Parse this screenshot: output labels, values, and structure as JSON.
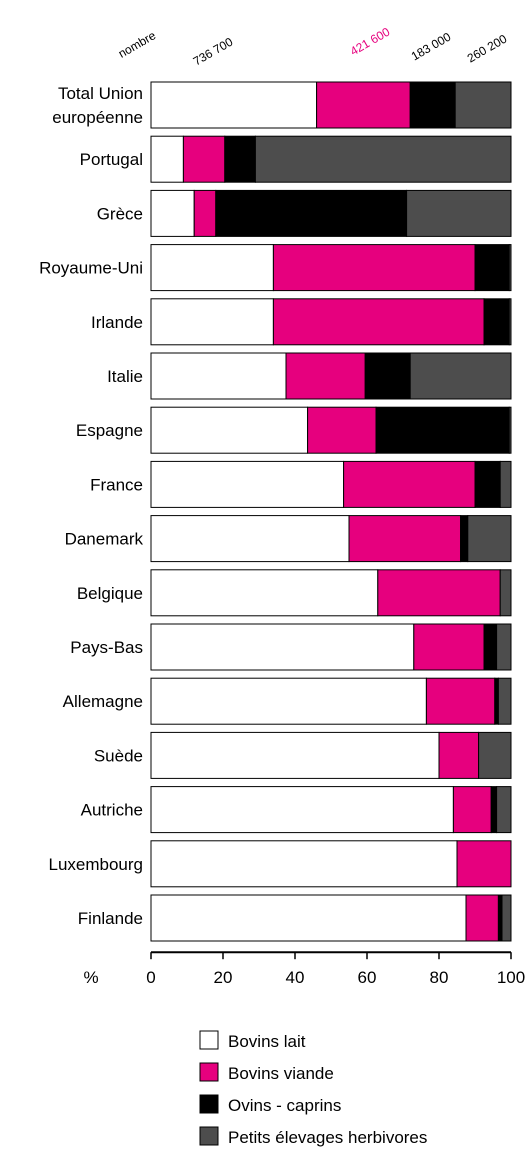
{
  "chart_data": {
    "type": "bar",
    "orientation": "horizontal",
    "stacked": true,
    "title": "",
    "xlabel": "%",
    "ylabel": "",
    "xlim": [
      0,
      100
    ],
    "x_ticks": [
      "0",
      "20",
      "40",
      "60",
      "80",
      "100"
    ],
    "header_labels": [
      {
        "text": "nombre",
        "color": "#000000"
      },
      {
        "text": "736 700",
        "color": "#000000"
      },
      {
        "text": "421 600",
        "color": "#e6007e"
      },
      {
        "text": "183 000",
        "color": "#000000"
      },
      {
        "text": "260 200",
        "color": "#000000"
      }
    ],
    "categories": [
      [
        "Total Union",
        "européenne"
      ],
      [
        "Portugal"
      ],
      [
        "Grèce"
      ],
      [
        "Royaume-Uni"
      ],
      [
        "Irlande"
      ],
      [
        "Italie"
      ],
      [
        "Espagne"
      ],
      [
        "France"
      ],
      [
        "Danemark"
      ],
      [
        "Belgique"
      ],
      [
        "Pays-Bas"
      ],
      [
        "Allemagne"
      ],
      [
        "Suède"
      ],
      [
        "Autriche"
      ],
      [
        "Luxembourg"
      ],
      [
        "Finlande"
      ]
    ],
    "series": [
      {
        "name": "Bovins lait",
        "color": "#ffffff",
        "values": [
          46,
          9,
          12,
          34,
          34,
          37.5,
          43.5,
          53.5,
          55,
          63,
          73,
          76.5,
          80,
          84,
          85,
          87.5
        ]
      },
      {
        "name": "Bovins viande",
        "color": "#e6007e",
        "values": [
          26,
          11.5,
          6,
          56,
          58.5,
          22,
          19,
          36.5,
          31,
          34,
          19.5,
          19,
          11,
          10.5,
          15,
          9
        ]
      },
      {
        "name": "Ovins - caprins",
        "color": "#000000",
        "values": [
          12.5,
          8.5,
          53,
          9.5,
          7,
          12.5,
          37,
          7,
          2,
          0,
          3.5,
          1,
          0,
          1.5,
          0,
          1
        ]
      },
      {
        "name": "Petits élevages herbivores",
        "color": "#4d4d4d",
        "values": [
          15.5,
          71,
          29,
          0.5,
          0.5,
          28,
          0.5,
          3,
          12,
          3,
          4,
          3.5,
          9,
          4,
          0,
          2.5
        ]
      }
    ],
    "grid": false,
    "legend_position": "bottom"
  }
}
